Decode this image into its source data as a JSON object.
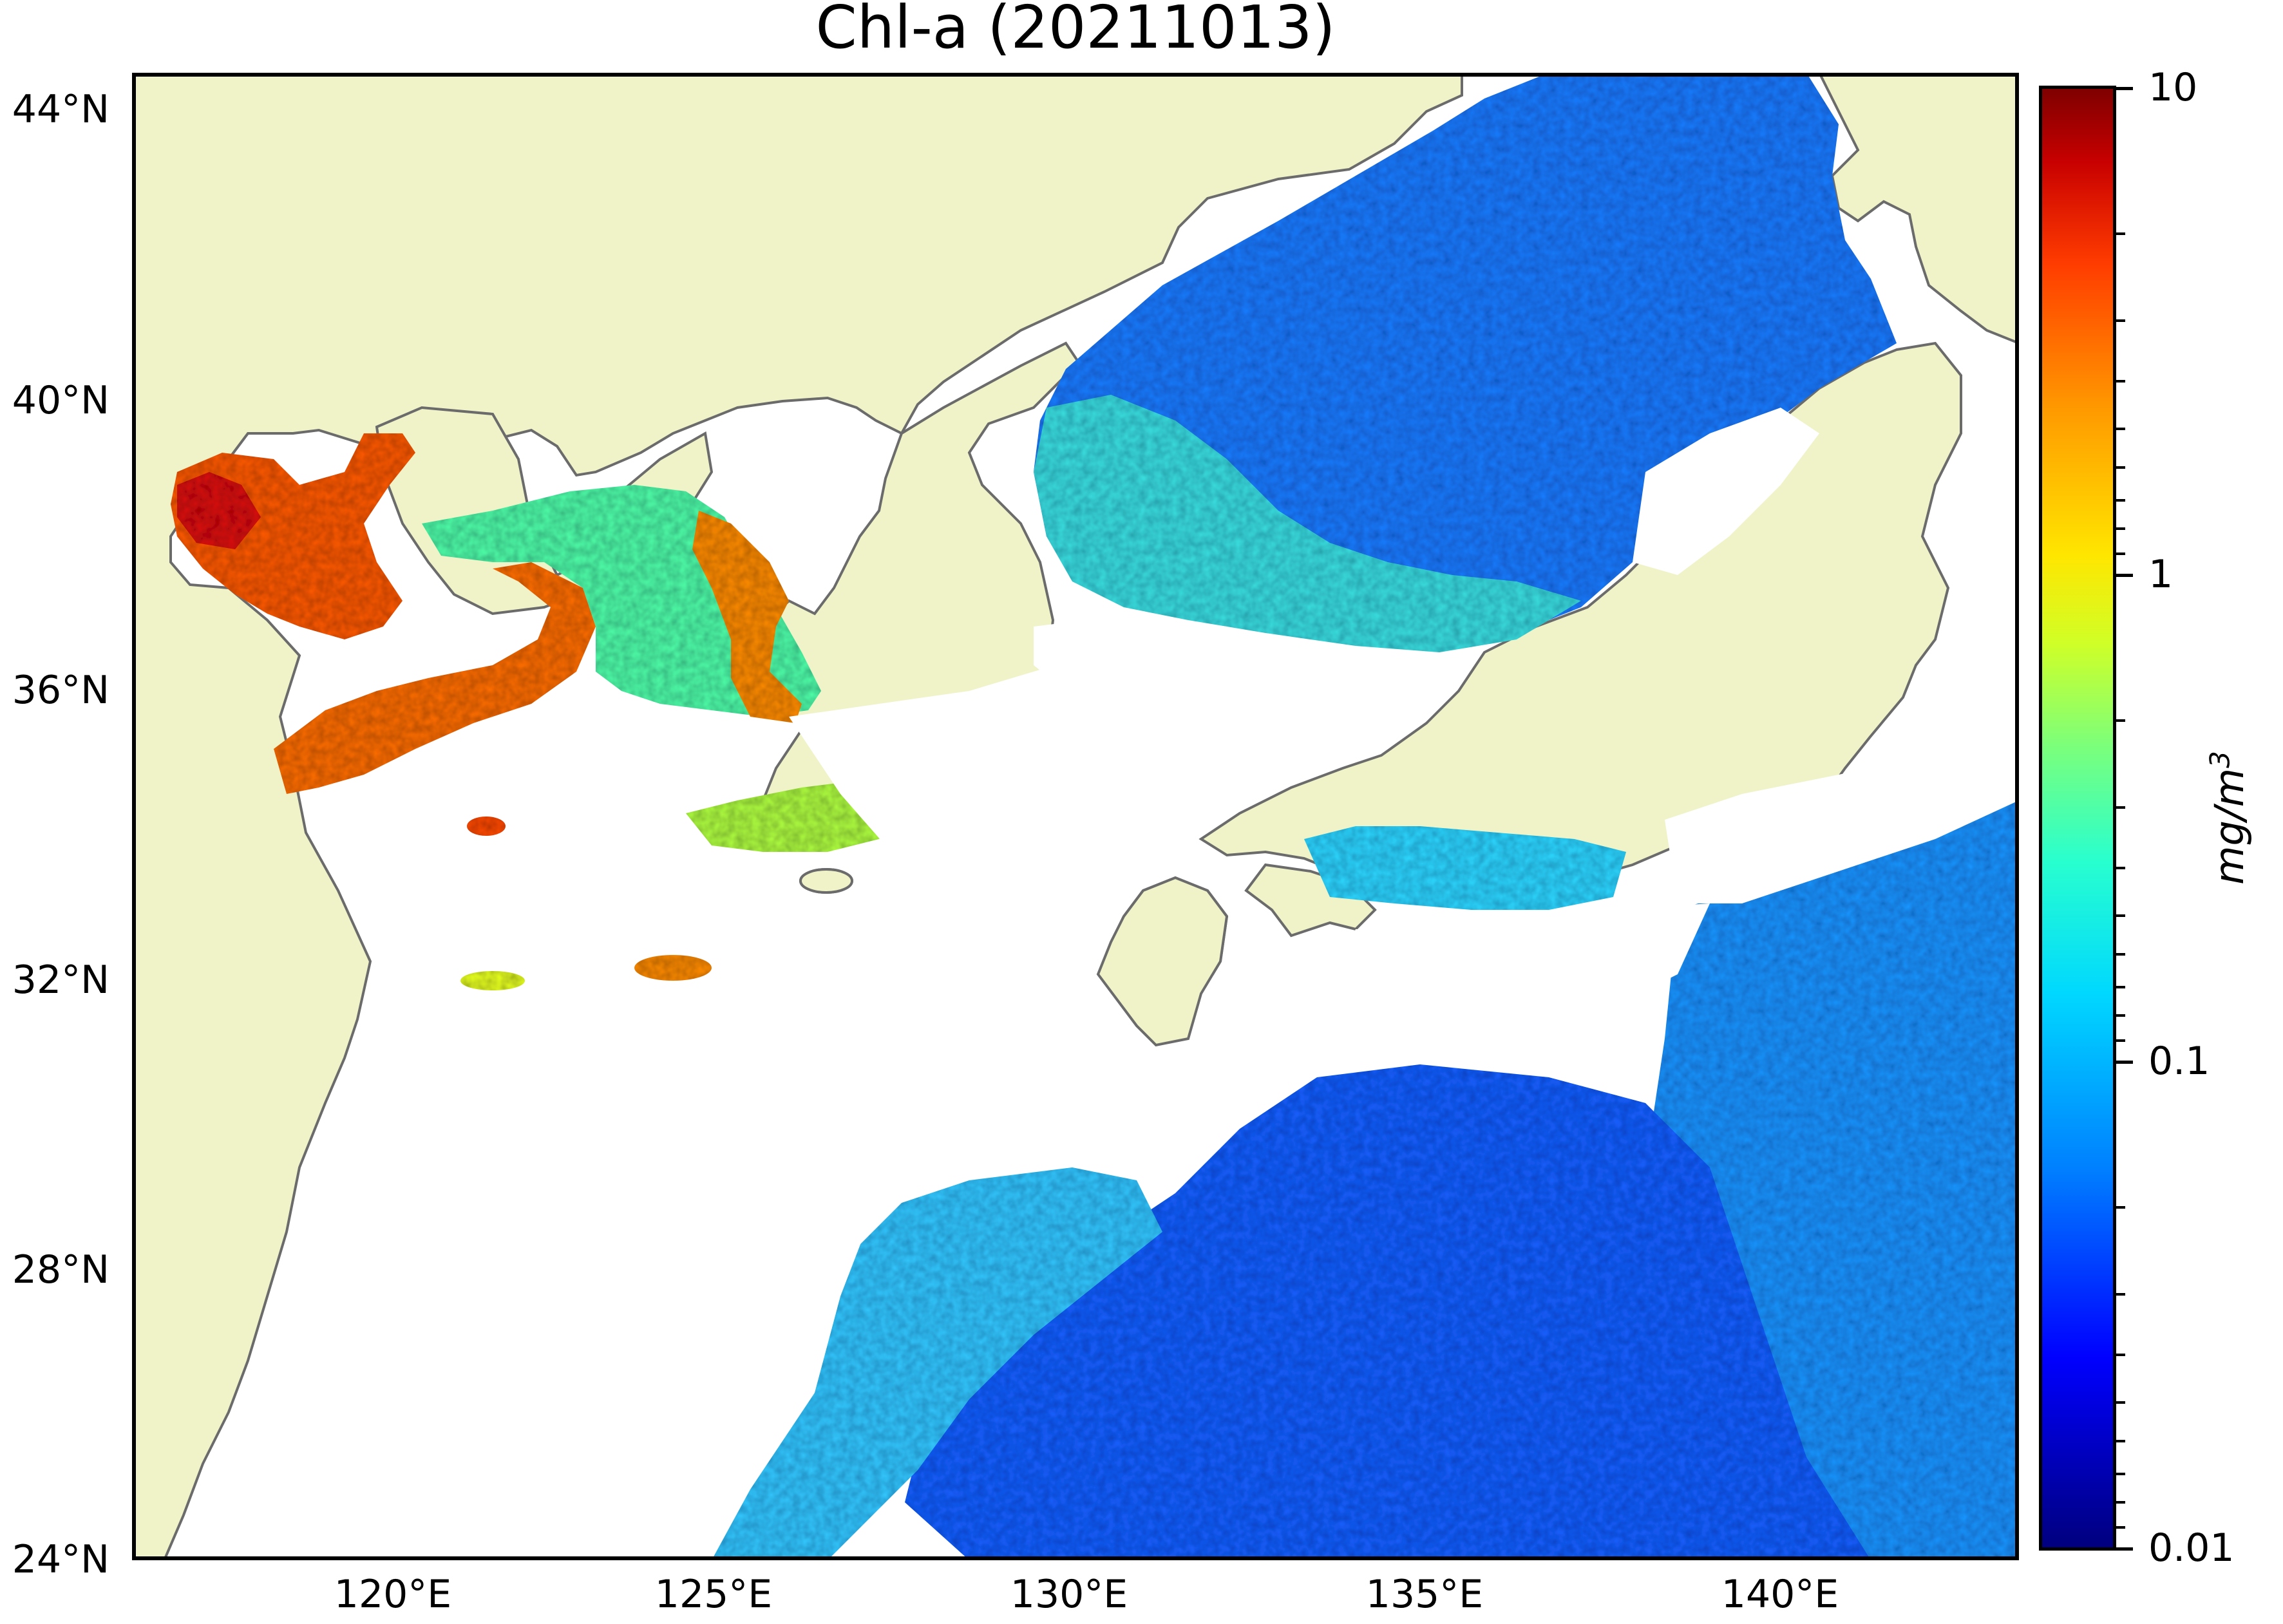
{
  "figure": {
    "title": "Chl-a (20211013)",
    "colors": {
      "land": "#f0f3c8",
      "no_data": "#ffffff",
      "coastline": "#6b6b6b",
      "frame": "#000000"
    }
  },
  "map": {
    "projection": "plate-carree",
    "lon_range": [
      116.5,
      143.0
    ],
    "lat_range": [
      24.0,
      44.5
    ],
    "lat_ticks": [
      "44°N",
      "40°N",
      "36°N",
      "32°N",
      "28°N",
      "24°N"
    ],
    "lon_ticks": [
      "120°E",
      "125°E",
      "130°E",
      "135°E",
      "140°E"
    ],
    "regions_shown": [
      "Bohai Sea",
      "Yellow Sea",
      "East China Sea",
      "Sea of Japan",
      "Korean Peninsula",
      "Japan",
      "Taiwan"
    ]
  },
  "colorbar": {
    "scale": "log",
    "range": [
      0.01,
      10
    ],
    "colormap": "jet",
    "tick_labels": [
      "10",
      "1",
      "0.1",
      "0.01"
    ],
    "unit_label": "mg/m3"
  }
}
